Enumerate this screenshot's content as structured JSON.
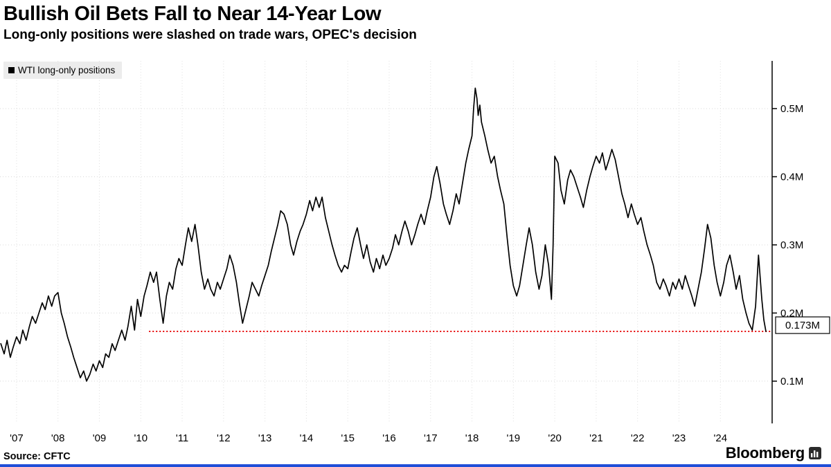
{
  "header": {
    "title": "Bullish Oil Bets Fall to Near 14-Year Low",
    "subtitle": "Long-only positions were slashed on trade wars, OPEC's decision"
  },
  "legend": {
    "label": "WTI long-only positions"
  },
  "footer": {
    "source": "Source: CFTC",
    "brand": "Bloomberg"
  },
  "colors": {
    "line": "#000000",
    "annotation_red": "#e60000",
    "grid_h": "#d8d8d8",
    "grid_v": "#e0e0e0",
    "axis": "#000000",
    "legend_bg": "#ececec",
    "bottom_bar": "#1f4fd8",
    "label_box_bg": "#ffffff",
    "label_box_border": "#000000"
  },
  "chart_data": {
    "type": "line",
    "title": "Bullish Oil Bets Fall to Near 14-Year Low",
    "subtitle": "Long-only positions were slashed on trade wars, OPEC's decision",
    "xlabel": "",
    "ylabel": "",
    "legend_position": "top-left",
    "grid": "dotted-both-axes",
    "xlim": [
      2006.6,
      2025.25
    ],
    "ylim": [
      0.038,
      0.57
    ],
    "yticks": [
      0.1,
      0.2,
      0.3,
      0.4,
      0.5
    ],
    "ytick_labels": [
      "0.1M",
      "0.2M",
      "0.3M",
      "0.4M",
      "0.5M"
    ],
    "xticks": [
      2007,
      2008,
      2009,
      2010,
      2011,
      2012,
      2013,
      2014,
      2015,
      2016,
      2017,
      2018,
      2019,
      2020,
      2021,
      2022,
      2023,
      2024
    ],
    "xtick_labels": [
      "'07",
      "'08",
      "'09",
      "'10",
      "'11",
      "'12",
      "'13",
      "'14",
      "'15",
      "'16",
      "'17",
      "'18",
      "'19",
      "'20",
      "'21",
      "'22",
      "'23",
      "'24"
    ],
    "annotation": {
      "type": "hline",
      "value": 0.173,
      "x_start": 2010.2,
      "label": "0.173M",
      "color": "#e60000",
      "style": "dotted"
    },
    "series": [
      {
        "name": "WTI long-only positions",
        "color": "#000000",
        "units": "millions of contracts",
        "points": [
          [
            2006.62,
            0.155
          ],
          [
            2006.7,
            0.14
          ],
          [
            2006.77,
            0.16
          ],
          [
            2006.85,
            0.135
          ],
          [
            2006.92,
            0.15
          ],
          [
            2007.0,
            0.165
          ],
          [
            2007.08,
            0.155
          ],
          [
            2007.15,
            0.175
          ],
          [
            2007.23,
            0.16
          ],
          [
            2007.31,
            0.18
          ],
          [
            2007.38,
            0.195
          ],
          [
            2007.46,
            0.185
          ],
          [
            2007.54,
            0.2
          ],
          [
            2007.62,
            0.215
          ],
          [
            2007.69,
            0.205
          ],
          [
            2007.77,
            0.225
          ],
          [
            2007.85,
            0.21
          ],
          [
            2007.92,
            0.225
          ],
          [
            2008.0,
            0.23
          ],
          [
            2008.08,
            0.2
          ],
          [
            2008.15,
            0.185
          ],
          [
            2008.23,
            0.165
          ],
          [
            2008.31,
            0.15
          ],
          [
            2008.38,
            0.135
          ],
          [
            2008.46,
            0.12
          ],
          [
            2008.54,
            0.105
          ],
          [
            2008.62,
            0.115
          ],
          [
            2008.69,
            0.1
          ],
          [
            2008.77,
            0.11
          ],
          [
            2008.85,
            0.125
          ],
          [
            2008.92,
            0.115
          ],
          [
            2009.0,
            0.13
          ],
          [
            2009.08,
            0.12
          ],
          [
            2009.15,
            0.14
          ],
          [
            2009.23,
            0.135
          ],
          [
            2009.31,
            0.155
          ],
          [
            2009.38,
            0.145
          ],
          [
            2009.46,
            0.16
          ],
          [
            2009.54,
            0.175
          ],
          [
            2009.62,
            0.16
          ],
          [
            2009.69,
            0.18
          ],
          [
            2009.77,
            0.21
          ],
          [
            2009.85,
            0.175
          ],
          [
            2009.92,
            0.22
          ],
          [
            2010.0,
            0.195
          ],
          [
            2010.08,
            0.225
          ],
          [
            2010.15,
            0.24
          ],
          [
            2010.23,
            0.26
          ],
          [
            2010.31,
            0.245
          ],
          [
            2010.38,
            0.26
          ],
          [
            2010.46,
            0.22
          ],
          [
            2010.54,
            0.185
          ],
          [
            2010.62,
            0.225
          ],
          [
            2010.69,
            0.245
          ],
          [
            2010.77,
            0.235
          ],
          [
            2010.85,
            0.265
          ],
          [
            2010.92,
            0.28
          ],
          [
            2011.0,
            0.27
          ],
          [
            2011.08,
            0.3
          ],
          [
            2011.15,
            0.325
          ],
          [
            2011.23,
            0.305
          ],
          [
            2011.31,
            0.33
          ],
          [
            2011.38,
            0.3
          ],
          [
            2011.46,
            0.26
          ],
          [
            2011.54,
            0.235
          ],
          [
            2011.62,
            0.25
          ],
          [
            2011.69,
            0.235
          ],
          [
            2011.77,
            0.225
          ],
          [
            2011.85,
            0.245
          ],
          [
            2011.92,
            0.235
          ],
          [
            2012.0,
            0.25
          ],
          [
            2012.08,
            0.265
          ],
          [
            2012.15,
            0.285
          ],
          [
            2012.23,
            0.27
          ],
          [
            2012.31,
            0.245
          ],
          [
            2012.38,
            0.215
          ],
          [
            2012.46,
            0.185
          ],
          [
            2012.54,
            0.205
          ],
          [
            2012.62,
            0.225
          ],
          [
            2012.69,
            0.245
          ],
          [
            2012.77,
            0.235
          ],
          [
            2012.85,
            0.225
          ],
          [
            2012.92,
            0.24
          ],
          [
            2013.0,
            0.255
          ],
          [
            2013.08,
            0.27
          ],
          [
            2013.15,
            0.29
          ],
          [
            2013.23,
            0.31
          ],
          [
            2013.31,
            0.33
          ],
          [
            2013.38,
            0.35
          ],
          [
            2013.46,
            0.345
          ],
          [
            2013.54,
            0.33
          ],
          [
            2013.62,
            0.3
          ],
          [
            2013.69,
            0.285
          ],
          [
            2013.77,
            0.305
          ],
          [
            2013.85,
            0.32
          ],
          [
            2013.92,
            0.33
          ],
          [
            2014.0,
            0.345
          ],
          [
            2014.08,
            0.365
          ],
          [
            2014.15,
            0.35
          ],
          [
            2014.23,
            0.37
          ],
          [
            2014.31,
            0.355
          ],
          [
            2014.38,
            0.37
          ],
          [
            2014.46,
            0.34
          ],
          [
            2014.54,
            0.32
          ],
          [
            2014.62,
            0.3
          ],
          [
            2014.69,
            0.285
          ],
          [
            2014.77,
            0.27
          ],
          [
            2014.85,
            0.26
          ],
          [
            2014.92,
            0.27
          ],
          [
            2015.0,
            0.265
          ],
          [
            2015.08,
            0.29
          ],
          [
            2015.15,
            0.31
          ],
          [
            2015.23,
            0.325
          ],
          [
            2015.31,
            0.3
          ],
          [
            2015.38,
            0.28
          ],
          [
            2015.46,
            0.3
          ],
          [
            2015.54,
            0.275
          ],
          [
            2015.62,
            0.26
          ],
          [
            2015.69,
            0.28
          ],
          [
            2015.77,
            0.265
          ],
          [
            2015.85,
            0.285
          ],
          [
            2015.92,
            0.27
          ],
          [
            2016.0,
            0.28
          ],
          [
            2016.08,
            0.295
          ],
          [
            2016.15,
            0.315
          ],
          [
            2016.23,
            0.3
          ],
          [
            2016.31,
            0.32
          ],
          [
            2016.38,
            0.335
          ],
          [
            2016.46,
            0.32
          ],
          [
            2016.54,
            0.3
          ],
          [
            2016.62,
            0.315
          ],
          [
            2016.69,
            0.33
          ],
          [
            2016.77,
            0.345
          ],
          [
            2016.85,
            0.33
          ],
          [
            2016.92,
            0.35
          ],
          [
            2017.0,
            0.37
          ],
          [
            2017.08,
            0.4
          ],
          [
            2017.15,
            0.415
          ],
          [
            2017.23,
            0.39
          ],
          [
            2017.31,
            0.36
          ],
          [
            2017.38,
            0.345
          ],
          [
            2017.46,
            0.33
          ],
          [
            2017.54,
            0.35
          ],
          [
            2017.62,
            0.375
          ],
          [
            2017.69,
            0.36
          ],
          [
            2017.77,
            0.39
          ],
          [
            2017.85,
            0.42
          ],
          [
            2017.92,
            0.44
          ],
          [
            2018.0,
            0.46
          ],
          [
            2018.04,
            0.5
          ],
          [
            2018.08,
            0.53
          ],
          [
            2018.12,
            0.515
          ],
          [
            2018.15,
            0.49
          ],
          [
            2018.19,
            0.505
          ],
          [
            2018.23,
            0.48
          ],
          [
            2018.31,
            0.46
          ],
          [
            2018.38,
            0.44
          ],
          [
            2018.46,
            0.42
          ],
          [
            2018.54,
            0.43
          ],
          [
            2018.62,
            0.4
          ],
          [
            2018.69,
            0.38
          ],
          [
            2018.77,
            0.36
          ],
          [
            2018.85,
            0.31
          ],
          [
            2018.92,
            0.27
          ],
          [
            2019.0,
            0.24
          ],
          [
            2019.08,
            0.225
          ],
          [
            2019.15,
            0.24
          ],
          [
            2019.23,
            0.27
          ],
          [
            2019.31,
            0.3
          ],
          [
            2019.38,
            0.325
          ],
          [
            2019.46,
            0.3
          ],
          [
            2019.54,
            0.26
          ],
          [
            2019.62,
            0.235
          ],
          [
            2019.69,
            0.255
          ],
          [
            2019.77,
            0.3
          ],
          [
            2019.85,
            0.27
          ],
          [
            2019.92,
            0.22
          ],
          [
            2019.96,
            0.3
          ],
          [
            2020.0,
            0.43
          ],
          [
            2020.08,
            0.42
          ],
          [
            2020.15,
            0.38
          ],
          [
            2020.23,
            0.36
          ],
          [
            2020.31,
            0.395
          ],
          [
            2020.38,
            0.41
          ],
          [
            2020.46,
            0.4
          ],
          [
            2020.54,
            0.385
          ],
          [
            2020.62,
            0.37
          ],
          [
            2020.69,
            0.355
          ],
          [
            2020.77,
            0.38
          ],
          [
            2020.85,
            0.4
          ],
          [
            2020.92,
            0.415
          ],
          [
            2021.0,
            0.43
          ],
          [
            2021.08,
            0.42
          ],
          [
            2021.15,
            0.435
          ],
          [
            2021.23,
            0.41
          ],
          [
            2021.31,
            0.425
          ],
          [
            2021.38,
            0.44
          ],
          [
            2021.46,
            0.425
          ],
          [
            2021.54,
            0.4
          ],
          [
            2021.62,
            0.375
          ],
          [
            2021.69,
            0.36
          ],
          [
            2021.77,
            0.34
          ],
          [
            2021.85,
            0.36
          ],
          [
            2021.92,
            0.345
          ],
          [
            2022.0,
            0.33
          ],
          [
            2022.08,
            0.34
          ],
          [
            2022.15,
            0.32
          ],
          [
            2022.23,
            0.3
          ],
          [
            2022.31,
            0.285
          ],
          [
            2022.38,
            0.27
          ],
          [
            2022.46,
            0.245
          ],
          [
            2022.54,
            0.235
          ],
          [
            2022.62,
            0.25
          ],
          [
            2022.69,
            0.24
          ],
          [
            2022.77,
            0.225
          ],
          [
            2022.85,
            0.245
          ],
          [
            2022.92,
            0.235
          ],
          [
            2023.0,
            0.25
          ],
          [
            2023.08,
            0.235
          ],
          [
            2023.15,
            0.255
          ],
          [
            2023.23,
            0.24
          ],
          [
            2023.31,
            0.225
          ],
          [
            2023.38,
            0.21
          ],
          [
            2023.46,
            0.235
          ],
          [
            2023.54,
            0.26
          ],
          [
            2023.62,
            0.295
          ],
          [
            2023.69,
            0.33
          ],
          [
            2023.77,
            0.31
          ],
          [
            2023.85,
            0.27
          ],
          [
            2023.92,
            0.245
          ],
          [
            2024.0,
            0.225
          ],
          [
            2024.08,
            0.245
          ],
          [
            2024.15,
            0.27
          ],
          [
            2024.23,
            0.285
          ],
          [
            2024.31,
            0.26
          ],
          [
            2024.38,
            0.235
          ],
          [
            2024.46,
            0.255
          ],
          [
            2024.54,
            0.22
          ],
          [
            2024.62,
            0.2
          ],
          [
            2024.69,
            0.185
          ],
          [
            2024.77,
            0.175
          ],
          [
            2024.85,
            0.21
          ],
          [
            2024.92,
            0.285
          ],
          [
            2025.0,
            0.22
          ],
          [
            2025.05,
            0.19
          ],
          [
            2025.1,
            0.173
          ]
        ]
      }
    ]
  }
}
